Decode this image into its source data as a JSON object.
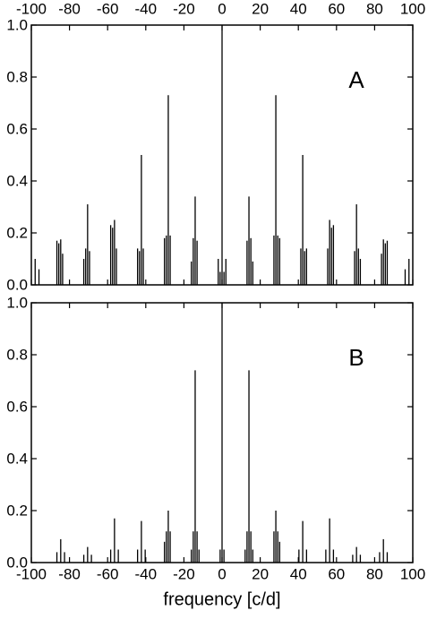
{
  "chart_data": [
    {
      "type": "stem",
      "annotation": "A",
      "color": "#000000",
      "xtick_labels": "top",
      "x": [
        -98,
        -96,
        -86.6,
        -85.6,
        -84.6,
        -83.6,
        -72.5,
        -71.5,
        -70.5,
        -69.5,
        -58.4,
        -57.4,
        -56.4,
        -55.4,
        -44.3,
        -43.3,
        -42.3,
        -41.3,
        -30.2,
        -29.2,
        -28.2,
        -27.2,
        -16.1,
        -15.1,
        -14.1,
        -13.1,
        -2,
        -1,
        0,
        1,
        2,
        13.1,
        14.1,
        15.1,
        16.1,
        27.2,
        28.2,
        29.2,
        30.2,
        41.3,
        42.3,
        43.3,
        44.3,
        55.4,
        56.4,
        57.4,
        58.4,
        69.5,
        70.5,
        71.5,
        72.5,
        83.6,
        84.6,
        85.6,
        86.6,
        96,
        98
      ],
      "values": [
        0.1,
        0.06,
        0.17,
        0.16,
        0.175,
        0.12,
        0.1,
        0.14,
        0.31,
        0.13,
        0.23,
        0.22,
        0.25,
        0.14,
        0.14,
        0.13,
        0.5,
        0.14,
        0.18,
        0.19,
        0.73,
        0.19,
        0.09,
        0.18,
        0.34,
        0.17,
        0.1,
        0.05,
        1.0,
        0.05,
        0.1,
        0.17,
        0.34,
        0.18,
        0.09,
        0.19,
        0.73,
        0.19,
        0.18,
        0.14,
        0.5,
        0.13,
        0.14,
        0.14,
        0.25,
        0.22,
        0.23,
        0.13,
        0.31,
        0.14,
        0.1,
        0.12,
        0.175,
        0.16,
        0.17,
        0.06,
        0.1
      ],
      "xlim": [
        -100,
        100
      ],
      "xticks": [
        -100,
        -80,
        -60,
        -40,
        -20,
        0,
        20,
        40,
        60,
        80,
        100
      ],
      "ylim": [
        0,
        1
      ],
      "yticks": [
        {
          "value": 0,
          "label": "0.0"
        },
        0.2,
        0.4,
        0.6,
        0.8,
        {
          "value": 1,
          "label": "1.0"
        }
      ]
    },
    {
      "type": "stem",
      "annotation": "B",
      "color": "#000000",
      "xtick_labels": "bottom",
      "xlabel": "frequency [c/d]",
      "x": [
        -86.6,
        -84.6,
        -82.6,
        -72.5,
        -70.5,
        -68.5,
        -58.4,
        -56.4,
        -54.4,
        -44.3,
        -42.3,
        -40.3,
        -30.2,
        -29.2,
        -28.2,
        -27.2,
        -16.1,
        -15.1,
        -14.1,
        -13.1,
        -12.1,
        -1,
        0,
        1,
        12.1,
        13.1,
        14.1,
        15.1,
        16.1,
        27.2,
        28.2,
        29.2,
        30.2,
        40.3,
        42.3,
        44.3,
        54.4,
        56.4,
        58.4,
        68.5,
        70.5,
        72.5,
        82.6,
        84.6,
        86.6
      ],
      "values": [
        0.04,
        0.09,
        0.04,
        0.03,
        0.06,
        0.03,
        0.05,
        0.17,
        0.05,
        0.05,
        0.16,
        0.05,
        0.08,
        0.12,
        0.2,
        0.12,
        0.05,
        0.12,
        0.74,
        0.12,
        0.05,
        0.05,
        1.0,
        0.05,
        0.05,
        0.12,
        0.74,
        0.12,
        0.05,
        0.12,
        0.2,
        0.12,
        0.08,
        0.05,
        0.16,
        0.05,
        0.05,
        0.17,
        0.05,
        0.03,
        0.06,
        0.03,
        0.04,
        0.09,
        0.04
      ],
      "xlim": [
        -100,
        100
      ],
      "xticks": [
        -100,
        -80,
        -60,
        -40,
        -20,
        0,
        20,
        40,
        60,
        80,
        100
      ],
      "ylim": [
        0,
        1
      ],
      "yticks": [
        {
          "value": 0,
          "label": "0.0"
        },
        0.2,
        0.4,
        0.6,
        0.8,
        {
          "value": 1,
          "label": "1.0"
        }
      ]
    }
  ]
}
